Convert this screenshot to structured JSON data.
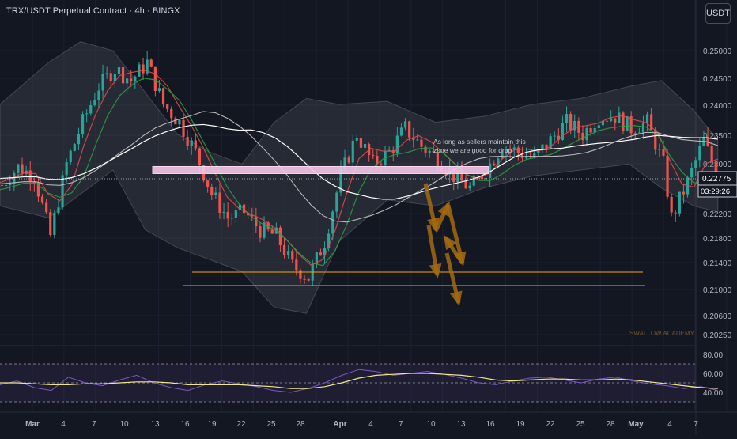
{
  "header": {
    "title": "TRX/USDT Perpetual Contract · 4h · BINGX",
    "currency_button": "USDT"
  },
  "colors": {
    "background": "#131722",
    "up": "#26a69a",
    "down": "#ef5350",
    "zone": "#f5c6e8",
    "target_lines": "#f7a600",
    "arrows": "#a36a10",
    "rsi_line": "#7e57c2",
    "rsi_ma": "#f0e68c",
    "ma_fast": "#e84a4a",
    "ma_mid": "#2ea043",
    "ma_slow": "#ffffff"
  },
  "chart_data": {
    "type": "candlestick",
    "symbol": "TRX/USDT Perpetual Contract",
    "interval": "4h",
    "exchange": "BINGX",
    "price_axis_ticks": [
      "0.25000",
      "0.24500",
      "0.24000",
      "0.23500",
      "0.23000",
      "0.22200",
      "0.21800",
      "0.21400",
      "0.21000",
      "0.20600",
      "0.20250"
    ],
    "time_axis_ticks": [
      "Mar",
      "4",
      "7",
      "10",
      "13",
      "16",
      "19",
      "22",
      "25",
      "28",
      "Apr",
      "4",
      "7",
      "10",
      "13",
      "16",
      "19",
      "22",
      "25",
      "28",
      "May",
      "4",
      "7"
    ],
    "last_price": "0.22775",
    "countdown": "03:29:26",
    "close_path": [
      [
        0,
        0.2275
      ],
      [
        2,
        0.2305
      ],
      [
        4,
        0.229
      ],
      [
        6,
        0.219
      ],
      [
        8,
        0.231
      ],
      [
        10,
        0.238
      ],
      [
        12,
        0.244
      ],
      [
        14,
        0.247
      ],
      [
        16,
        0.245
      ],
      [
        18,
        0.248
      ],
      [
        20,
        0.241
      ],
      [
        22,
        0.238
      ],
      [
        24,
        0.233
      ],
      [
        26,
        0.226
      ],
      [
        28,
        0.222
      ],
      [
        30,
        0.223
      ],
      [
        32,
        0.22
      ],
      [
        34,
        0.219
      ],
      [
        36,
        0.214
      ],
      [
        38,
        0.212
      ],
      [
        40,
        0.218
      ],
      [
        42,
        0.229
      ],
      [
        44,
        0.236
      ],
      [
        46,
        0.231
      ],
      [
        48,
        0.233
      ],
      [
        50,
        0.237
      ],
      [
        52,
        0.234
      ],
      [
        54,
        0.232
      ],
      [
        56,
        0.229
      ],
      [
        58,
        0.227
      ],
      [
        60,
        0.23
      ],
      [
        62,
        0.234
      ],
      [
        64,
        0.233
      ],
      [
        66,
        0.232
      ],
      [
        68,
        0.235
      ],
      [
        70,
        0.238
      ],
      [
        72,
        0.236
      ],
      [
        74,
        0.239
      ],
      [
        76,
        0.239
      ],
      [
        78,
        0.237
      ],
      [
        80,
        0.238
      ],
      [
        82,
        0.231
      ],
      [
        83,
        0.222
      ],
      [
        85,
        0.228
      ],
      [
        87,
        0.235
      ],
      [
        89,
        0.2278
      ]
    ],
    "rsi": {
      "levels": [
        "80.00",
        "60.00",
        "40.00"
      ],
      "values": [
        48,
        52,
        45,
        42,
        56,
        50,
        47,
        53,
        58,
        50,
        45,
        42,
        48,
        52,
        49,
        46,
        42,
        40,
        44,
        50,
        58,
        64,
        62,
        58,
        60,
        62,
        59,
        55,
        50,
        48,
        52,
        55,
        56,
        53,
        50,
        54,
        56,
        52,
        49,
        47,
        44,
        46,
        42
      ],
      "ma_values": [
        50,
        50,
        49,
        48,
        48,
        49,
        49,
        50,
        51,
        51,
        50,
        48,
        48,
        48,
        48,
        47,
        46,
        44,
        44,
        46,
        50,
        55,
        58,
        59,
        60,
        60,
        59,
        58,
        56,
        53,
        52,
        53,
        54,
        54,
        53,
        53,
        54,
        53,
        51,
        49,
        47,
        45,
        44
      ]
    },
    "annotations": {
      "zone_note": "As long as sellers maintain this zone we are good for drop",
      "zone_range": [
        0.2297,
        0.2306
      ],
      "target_levels": [
        0.2127,
        0.2107
      ],
      "watermark": "SWALLOW ACADEMY"
    }
  }
}
